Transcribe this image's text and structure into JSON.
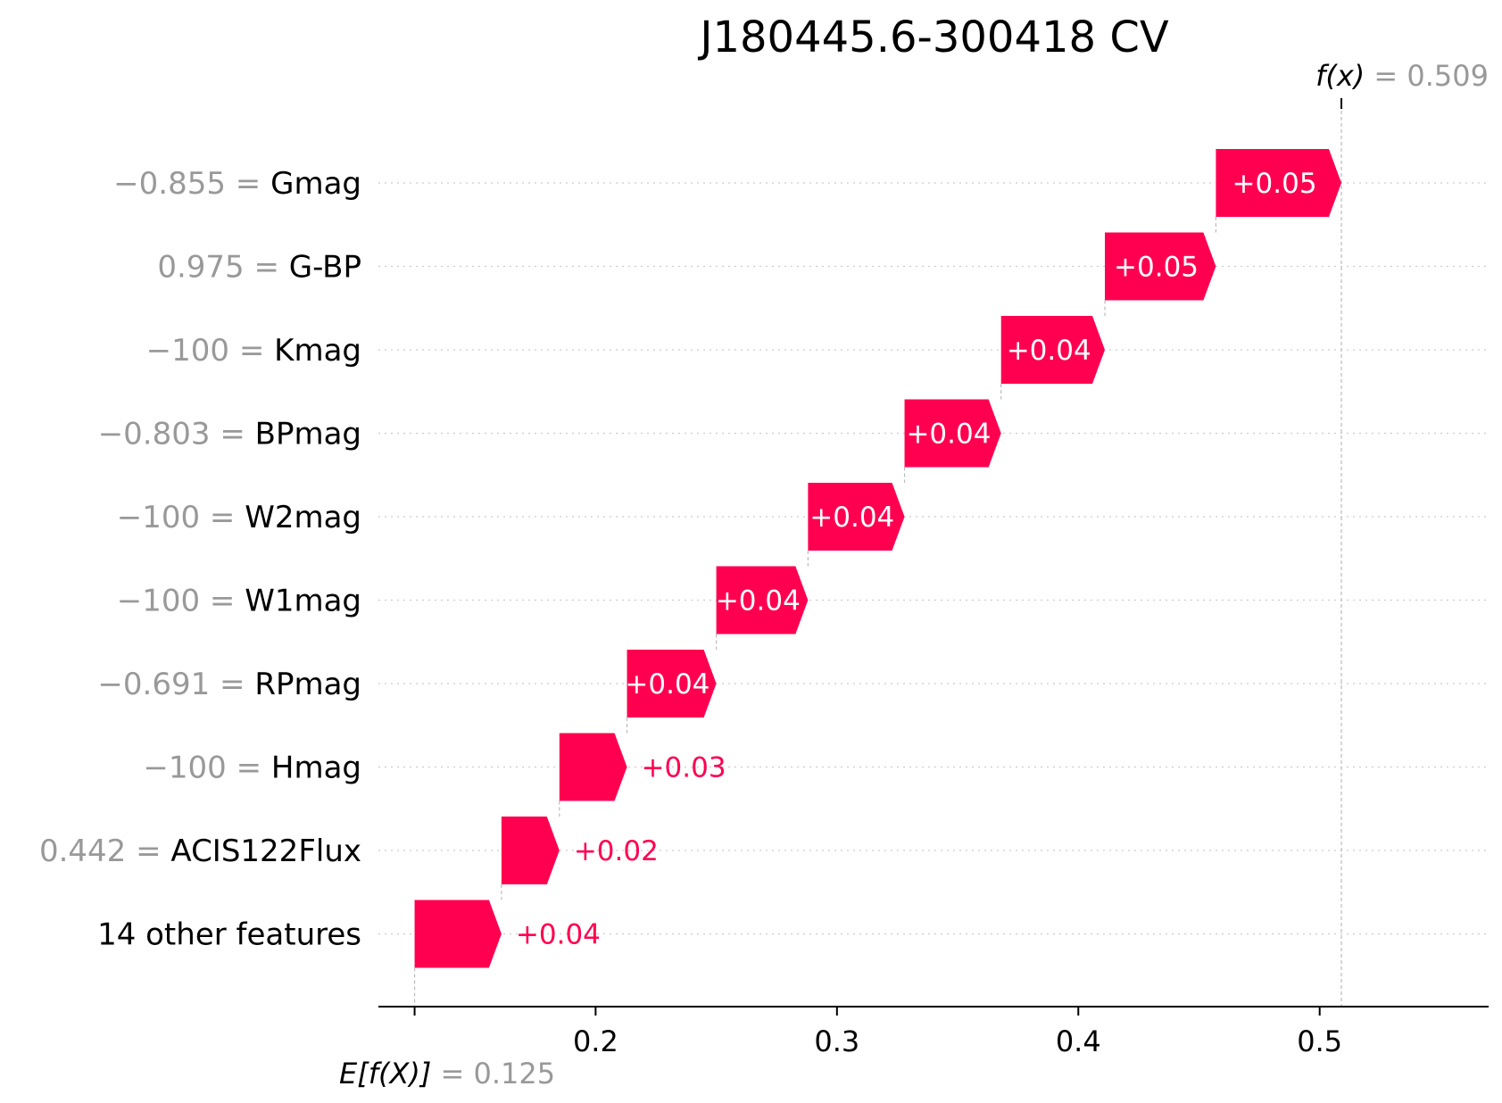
{
  "chart_data": {
    "type": "waterfall",
    "title": "J180445.6-300418 CV",
    "base_value": 0.125,
    "base_label": {
      "prefix": "E[f(X)]",
      "eq": " = ",
      "value": "0.125"
    },
    "final_value": 0.509,
    "final_label": {
      "prefix": "f(x)",
      "eq": " = ",
      "value": "0.509"
    },
    "xlim": [
      0.11,
      0.57
    ],
    "x_ticks": [
      0.2,
      0.3,
      0.4,
      0.5
    ],
    "x_tick_labels": [
      "0.2",
      "0.3",
      "0.4",
      "0.5"
    ],
    "grid": "dotted horizontal rows",
    "positive_color": "#ff0051",
    "positive_text_inside": "#ffffff",
    "rows": [
      {
        "value_text": "−0.855",
        "feature": "Gmag",
        "label": "+0.05",
        "start": 0.457,
        "end": 0.509
      },
      {
        "value_text": "0.975",
        "feature": "G-BP",
        "label": "+0.05",
        "start": 0.411,
        "end": 0.457
      },
      {
        "value_text": "−100",
        "feature": "Kmag",
        "label": "+0.04",
        "start": 0.368,
        "end": 0.411
      },
      {
        "value_text": "−0.803",
        "feature": "BPmag",
        "label": "+0.04",
        "start": 0.328,
        "end": 0.368
      },
      {
        "value_text": "−100",
        "feature": "W2mag",
        "label": "+0.04",
        "start": 0.288,
        "end": 0.328
      },
      {
        "value_text": "−100",
        "feature": "W1mag",
        "label": "+0.04",
        "start": 0.25,
        "end": 0.288
      },
      {
        "value_text": "−0.691",
        "feature": "RPmag",
        "label": "+0.04",
        "start": 0.213,
        "end": 0.25
      },
      {
        "value_text": "−100",
        "feature": "Hmag",
        "label": "+0.03",
        "start": 0.185,
        "end": 0.213
      },
      {
        "value_text": "0.442",
        "feature": "ACIS122Flux",
        "label": "+0.02",
        "start": 0.161,
        "end": 0.185
      },
      {
        "value_text": "",
        "feature": "14 other features",
        "label": "+0.04",
        "start": 0.125,
        "end": 0.161
      }
    ]
  }
}
